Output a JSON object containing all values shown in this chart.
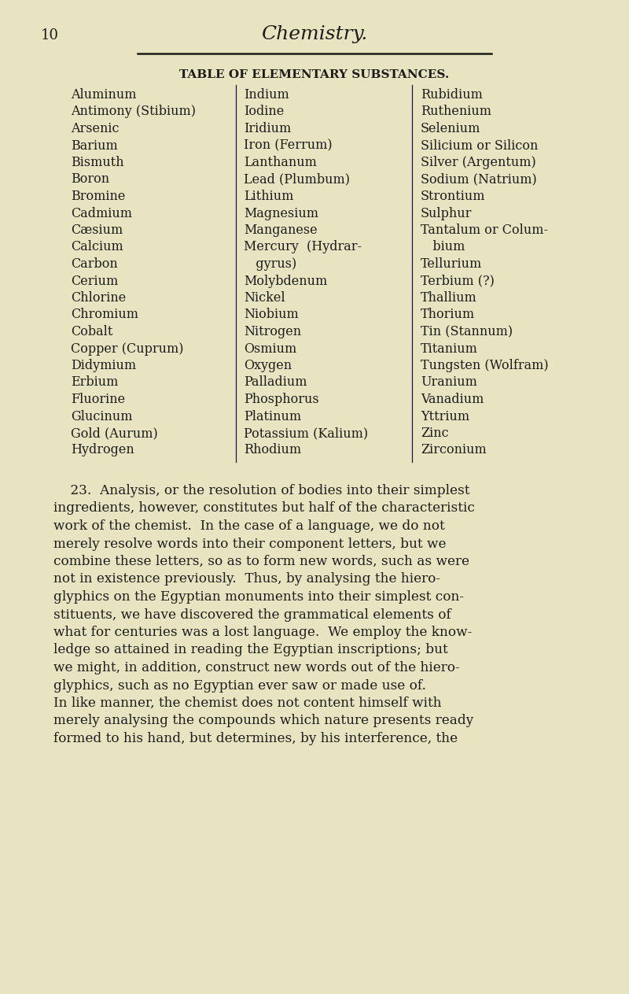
{
  "bg_color": "#e8e3c0",
  "page_num": "10",
  "header_title": "Chemistry.",
  "table_title": "TABLE OF ELEMENTARY SUBSTANCES.",
  "col1": [
    "Aluminum",
    "Antimony (Stibium)",
    "Arsenic",
    "Barium",
    "Bismuth",
    "Boron",
    "Bromine",
    "Cadmium",
    "Cæsium",
    "Calcium",
    "Carbon",
    "Cerium",
    "Chlorine",
    "Chromium",
    "Cobalt",
    "Copper (Cuprum)",
    "Didymium",
    "Erbium",
    "Fluorine",
    "Glucinum",
    "Gold (Aurum)",
    "Hydrogen"
  ],
  "col2": [
    "Indium",
    "Iodine",
    "Iridium",
    "Iron (Ferrum)",
    "Lanthanum",
    "Lead (Plumbum)",
    "Lithium",
    "Magnesium",
    "Manganese",
    "Mercury  (Hydrar-",
    "   gyrus)",
    "Molybdenum",
    "Nickel",
    "Niobium",
    "Nitrogen",
    "Osmium",
    "Oxygen",
    "Palladium",
    "Phosphorus",
    "Platinum",
    "Potassium (Kalium)",
    "Rhodium"
  ],
  "col3": [
    "Rubidium",
    "Ruthenium",
    "Selenium",
    "Silicium or Silicon",
    "Silver (Argentum)",
    "Sodium (Natrium)",
    "Strontium",
    "Sulphur",
    "Tantalum or Colum-",
    "   bium",
    "Tellurium",
    "Terbium (?)",
    "Thallium",
    "Thorium",
    "Tin (Stannum)",
    "Titanium",
    "Tungsten (Wolfram)",
    "Uranium",
    "Vanadium",
    "Yttrium",
    "Zinc",
    "Zirconium"
  ],
  "para_lines": [
    "    23.  Analysis, or the resolution of bodies into their simplest",
    "ingredients, however, constitutes but half of the characteristic",
    "work of the chemist.  In the case of a language, we do not",
    "merely resolve words into their component letters, but we",
    "combine these letters, so as to form new words, such as were",
    "not in existence previously.  Thus, by analysing the hiero-",
    "glyphics on the Egyptian monuments into their simplest con-",
    "stituents, we have discovered the grammatical elements of",
    "what for centuries was a lost language.  We employ the know-",
    "ledge so attained in reading the Egyptian inscriptions; but",
    "we might, in addition, construct new words out of the hiero-",
    "glyphics, such as no Egyptian ever saw or made use of.",
    "In like manner, the chemist does not content himself with",
    "merely analysing the compounds which nature presents ready",
    "formed to his hand, but determines, by his interference, the"
  ]
}
